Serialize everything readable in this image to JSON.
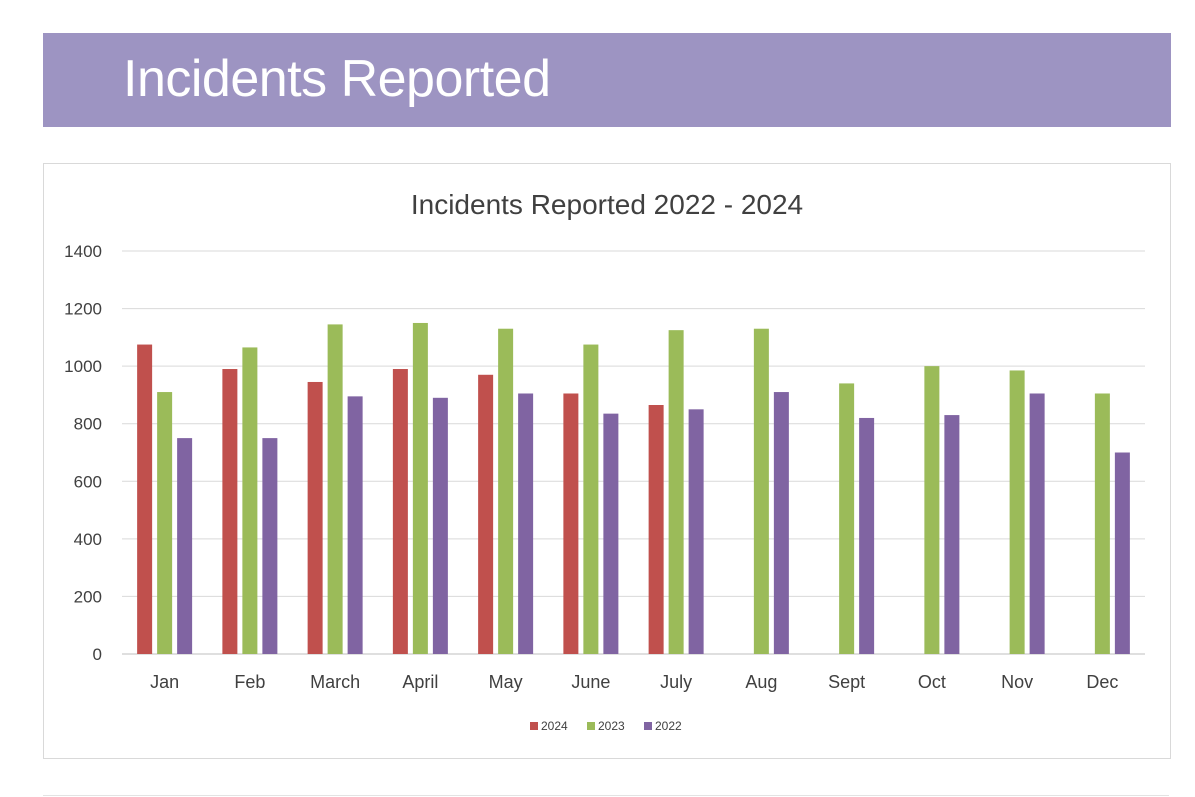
{
  "banner": {
    "title": "Incidents Reported",
    "background_color": "#9d94c2"
  },
  "chart_data": {
    "type": "bar",
    "title": "Incidents Reported 2022 - 2024",
    "xlabel": "",
    "ylabel": "",
    "ylim": [
      0,
      1400
    ],
    "yticks": [
      "0",
      "200",
      "400",
      "600",
      "800",
      "1000",
      "1200",
      "1400"
    ],
    "grid": true,
    "legend_position": "bottom",
    "categories": [
      "Jan",
      "Feb",
      "March",
      "April",
      "May",
      "June",
      "July",
      "Aug",
      "Sept",
      "Oct",
      "Nov",
      "Dec"
    ],
    "series": [
      {
        "name": "2024",
        "color": "#c0504d",
        "values": [
          1075,
          990,
          945,
          990,
          970,
          905,
          865,
          null,
          null,
          null,
          null,
          null
        ]
      },
      {
        "name": "2023",
        "color": "#9bbb59",
        "values": [
          910,
          1065,
          1145,
          1150,
          1130,
          1075,
          1125,
          1130,
          940,
          1000,
          985,
          905
        ]
      },
      {
        "name": "2022",
        "color": "#8064a2",
        "values": [
          750,
          750,
          895,
          890,
          905,
          835,
          850,
          910,
          820,
          830,
          905,
          700
        ]
      }
    ]
  }
}
